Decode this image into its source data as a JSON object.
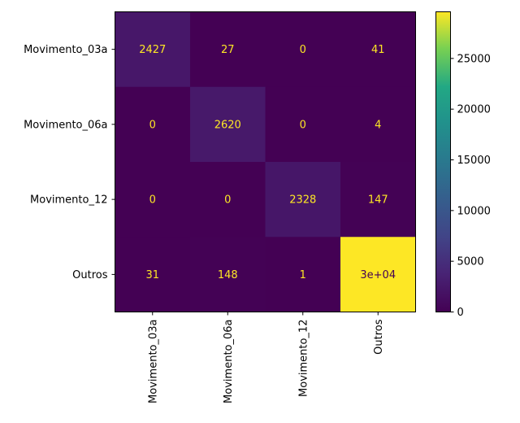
{
  "chart_data": {
    "type": "heatmap",
    "row_labels": [
      "Movimento_03a",
      "Movimento_06a",
      "Movimento_12",
      "Outros"
    ],
    "col_labels": [
      "Movimento_03a",
      "Movimento_06a",
      "Movimento_12",
      "Outros"
    ],
    "values": [
      [
        2427,
        27,
        0,
        41
      ],
      [
        0,
        2620,
        0,
        4
      ],
      [
        0,
        0,
        2328,
        147
      ],
      [
        31,
        148,
        1,
        29600
      ]
    ],
    "cell_labels": [
      [
        "2427",
        "27",
        "0",
        "41"
      ],
      [
        "0",
        "2620",
        "0",
        "4"
      ],
      [
        "0",
        "0",
        "2328",
        "147"
      ],
      [
        "31",
        "148",
        "1",
        "3e+04"
      ]
    ],
    "colorbar": {
      "min": 0,
      "max": 29600,
      "ticks": [
        0,
        5000,
        10000,
        15000,
        20000,
        25000
      ],
      "tick_labels": [
        "0",
        "5000",
        "10000",
        "15000",
        "20000",
        "25000"
      ],
      "colormap": "viridis"
    },
    "text_colors": {
      "on_dark": "#fde725",
      "on_light": "#440154"
    },
    "grid": false
  }
}
